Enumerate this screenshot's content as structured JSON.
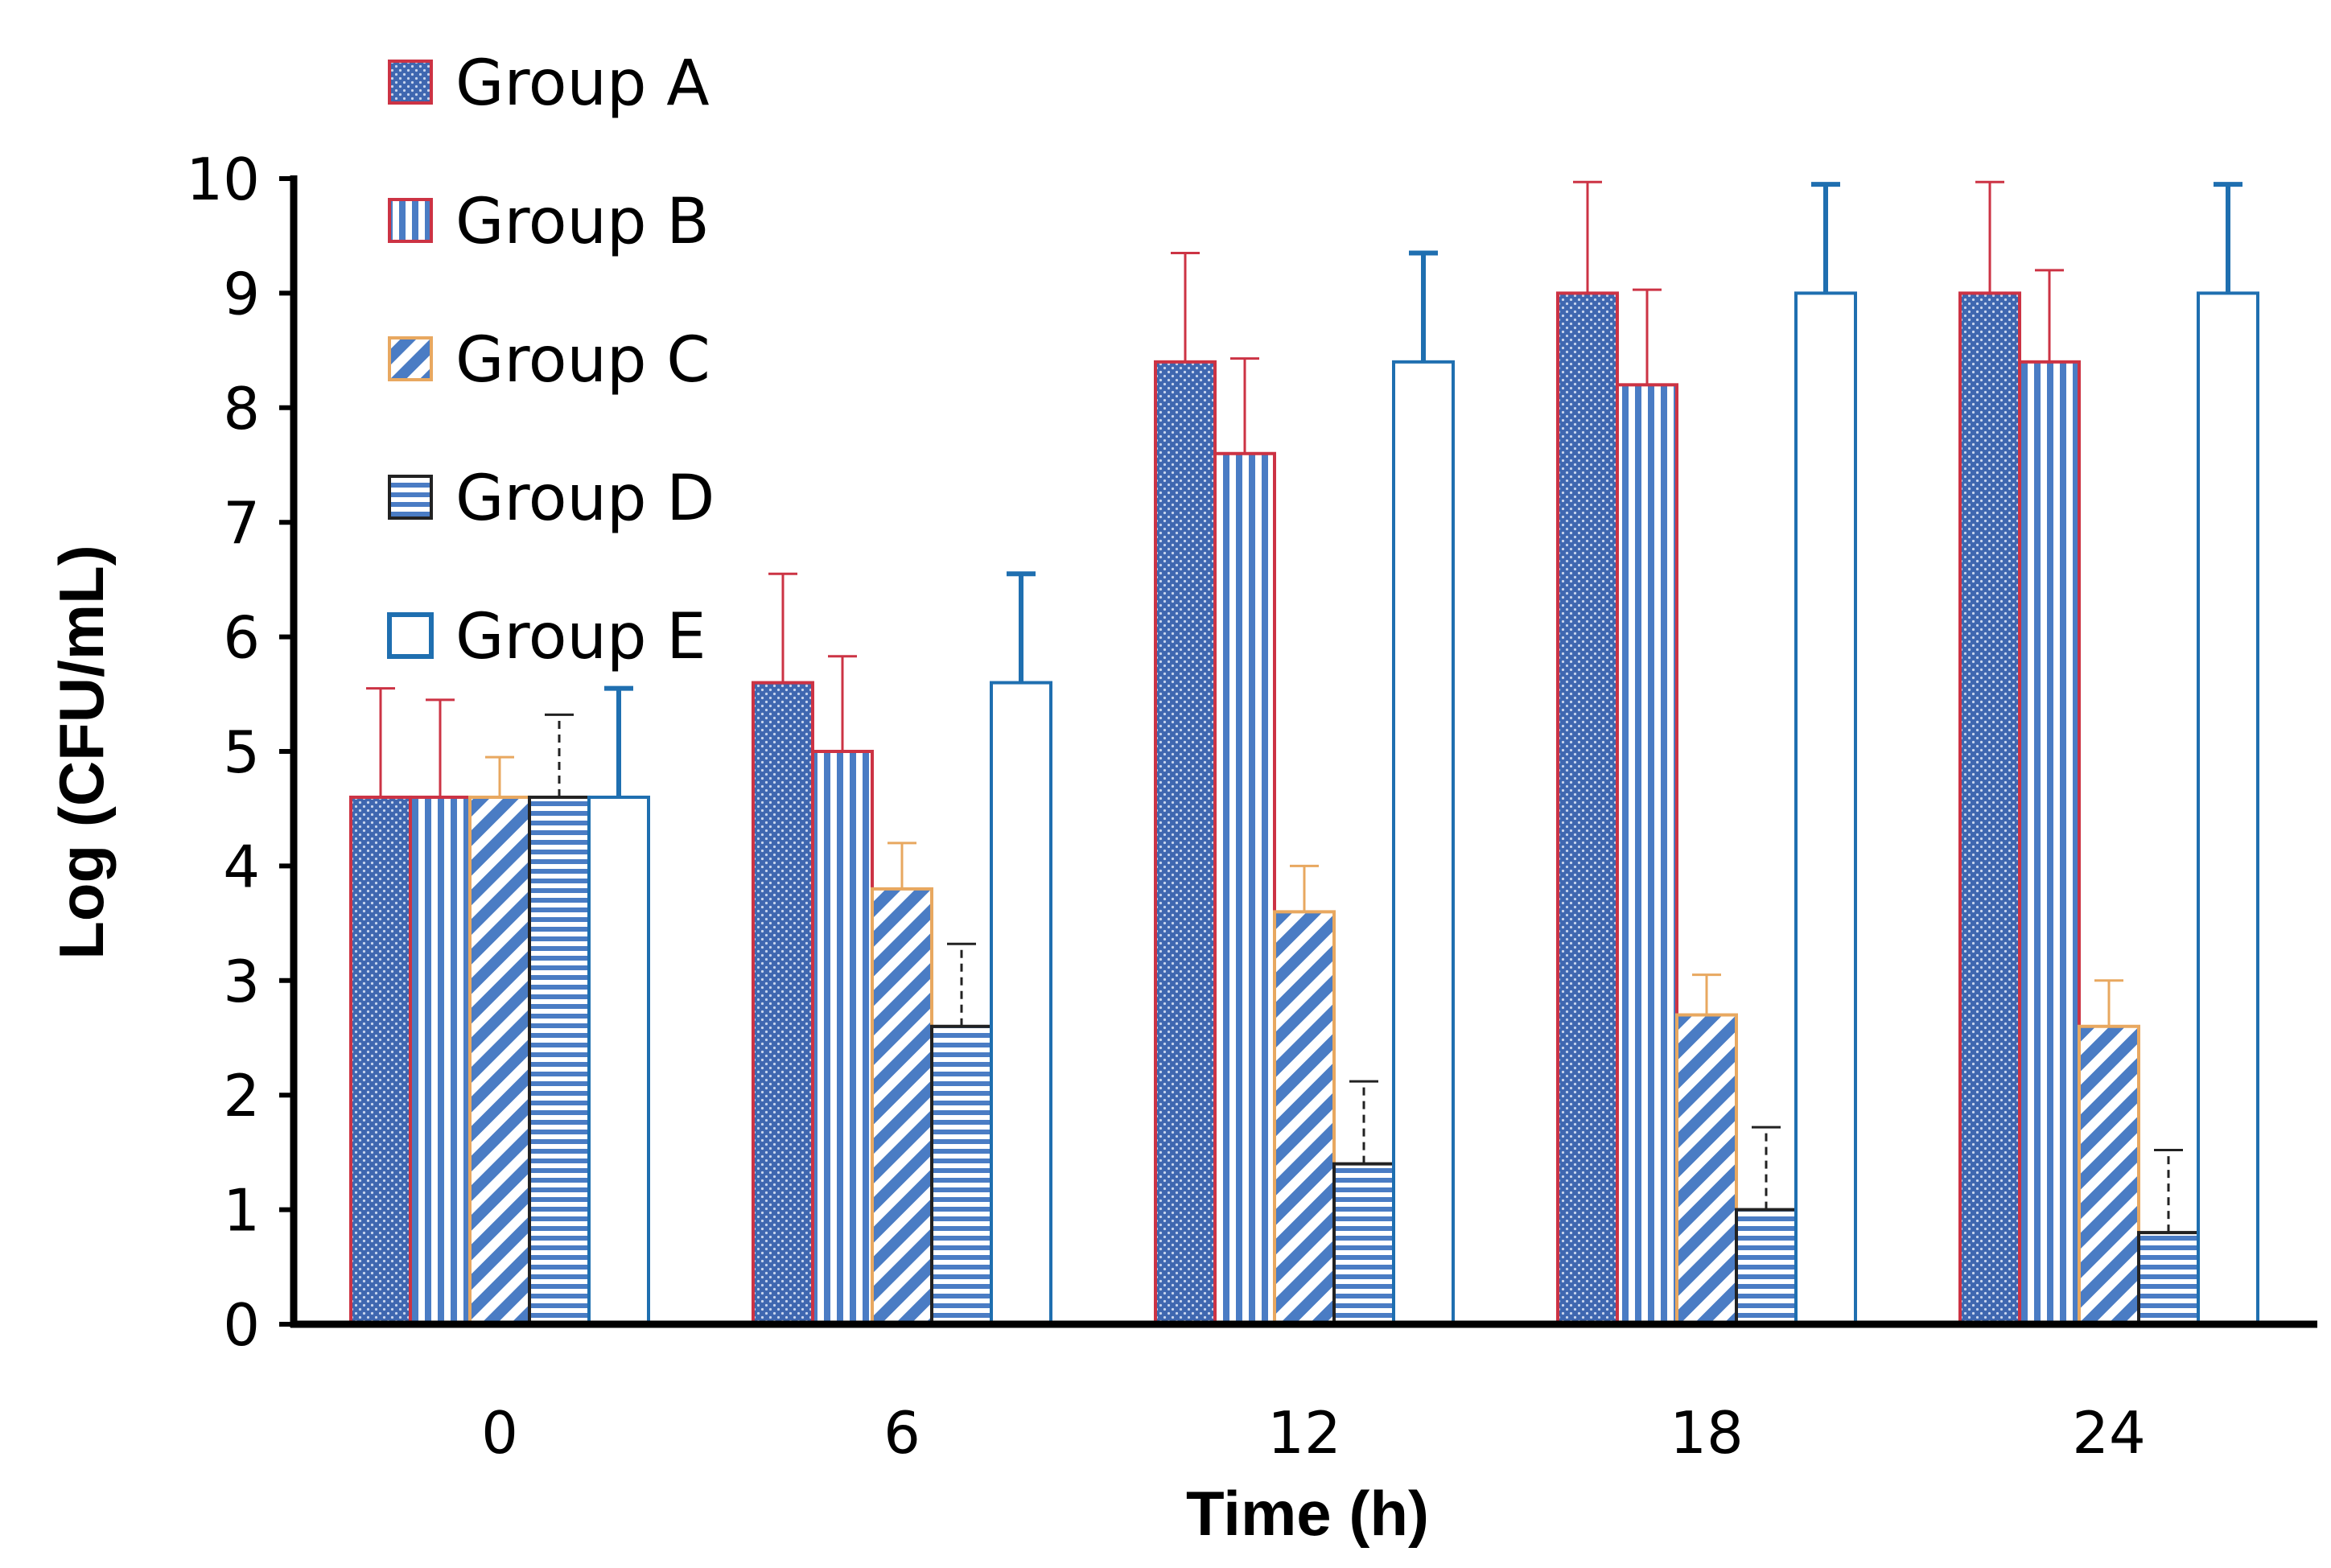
{
  "chart_data": {
    "type": "bar",
    "title": "",
    "xlabel": "Time (h)",
    "ylabel": "Log (CFU/mL)",
    "ylim": [
      0,
      10
    ],
    "yticks": [
      "0",
      "1",
      "2",
      "3",
      "4",
      "5",
      "6",
      "7",
      "8",
      "9",
      "10"
    ],
    "categories": [
      "0",
      "6",
      "12",
      "18",
      "24"
    ],
    "grid": false,
    "legend_position": "top-left",
    "series": [
      {
        "name": "Group A",
        "pattern": "dots",
        "fill_color": "#5b7fc0",
        "edge_color": "#cc3344",
        "error_color": "#cc3344",
        "error_style": "solid",
        "values": [
          4.6,
          5.6,
          8.4,
          9.0,
          9.0
        ],
        "errors": [
          0.95,
          0.95,
          0.95,
          0.97,
          0.97
        ]
      },
      {
        "name": "Group B",
        "pattern": "vertical-stripes",
        "fill_color": "#4a7cc4",
        "edge_color": "#cc3344",
        "error_color": "#cc3344",
        "error_style": "solid",
        "values": [
          4.6,
          5.0,
          7.6,
          8.2,
          8.4
        ],
        "errors": [
          0.85,
          0.83,
          0.83,
          0.83,
          0.8
        ]
      },
      {
        "name": "Group C",
        "pattern": "diagonal-stripes",
        "fill_color": "#4a7cc4",
        "edge_color": "#e8a860",
        "error_color": "#e8a860",
        "error_style": "solid",
        "values": [
          4.6,
          3.8,
          3.6,
          2.7,
          2.6
        ],
        "errors": [
          0.35,
          0.4,
          0.4,
          0.35,
          0.4
        ]
      },
      {
        "name": "Group D",
        "pattern": "horizontal-stripes",
        "fill_color": "#4a7cc4",
        "edge_color": "#222222",
        "error_color": "#222222",
        "error_style": "dashed",
        "values": [
          4.6,
          2.6,
          1.4,
          1.0,
          0.8
        ],
        "errors": [
          0.72,
          0.72,
          0.72,
          0.72,
          0.72
        ]
      },
      {
        "name": "Group E",
        "pattern": "none",
        "fill_color": "#ffffff",
        "edge_color": "#1f6fb0",
        "error_color": "#1f6fb0",
        "error_style": "solid",
        "values": [
          4.6,
          5.6,
          8.4,
          9.0,
          9.0
        ],
        "errors": [
          0.95,
          0.95,
          0.95,
          0.95,
          0.95
        ]
      }
    ]
  }
}
